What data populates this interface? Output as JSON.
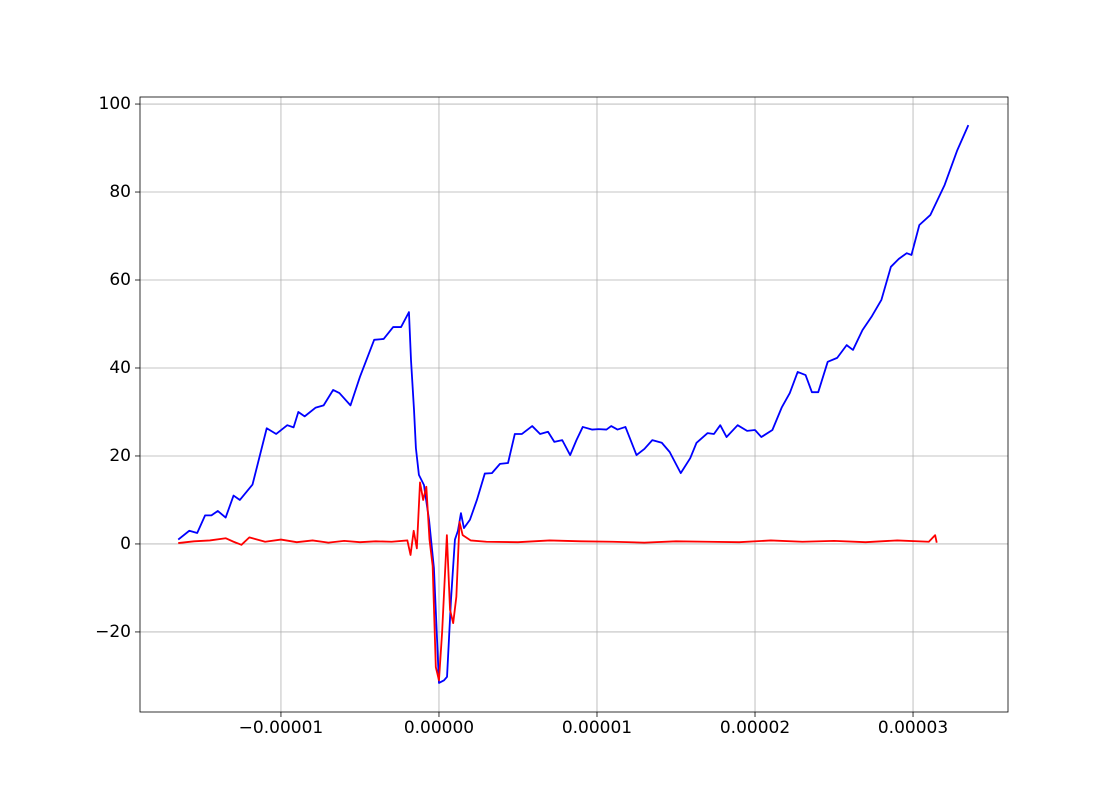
{
  "chart_data": {
    "type": "line",
    "grid": true,
    "xlim": [
      -1.892e-05,
      3.601e-05
    ],
    "ylim": [
      -38.2,
      101.6
    ],
    "xticks": [
      {
        "value": -1e-05,
        "label": "−0.00001"
      },
      {
        "value": 0,
        "label": "0.00000"
      },
      {
        "value": 1e-05,
        "label": "0.00001"
      },
      {
        "value": 2e-05,
        "label": "0.00002"
      },
      {
        "value": 3e-05,
        "label": "0.00003"
      }
    ],
    "yticks": [
      {
        "value": -20,
        "label": "−20"
      },
      0,
      20,
      40,
      60,
      80,
      100
    ],
    "series": [
      {
        "color": "#0000ff",
        "x": [
          -1.65e-05,
          -1.58e-05,
          -1.53e-05,
          -1.48e-05,
          -1.44e-05,
          -1.4e-05,
          -1.35e-05,
          -1.3e-05,
          -1.26e-05,
          -1.18e-05,
          -1.09e-05,
          -1.03e-05,
          -9.6e-06,
          -9.2e-06,
          -8.9e-06,
          -8.5e-06,
          -7.8e-06,
          -7.3e-06,
          -6.7e-06,
          -6.3e-06,
          -5.6e-06,
          -5e-06,
          -4.1e-06,
          -3.5e-06,
          -2.9e-06,
          -2.4e-06,
          -1.9e-06,
          -1.77e-06,
          -1.58e-06,
          -1.46e-06,
          -1.27e-06,
          -9.5e-07,
          -6.3e-07,
          -3.2e-07,
          0,
          3.2e-07,
          5.1e-07,
          7.6e-07,
          1.01e-06,
          1.2e-06,
          1.39e-06,
          1.58e-06,
          1.96e-06,
          2.4e-06,
          2.9e-06,
          3.35e-06,
          3.86e-06,
          4.37e-06,
          4.8e-06,
          5.25e-06,
          5.9e-06,
          6.4e-06,
          6.9e-06,
          7.3e-06,
          7.8e-06,
          8.3e-06,
          8.7e-06,
          9.1e-06,
          9.7e-06,
          1.01e-05,
          1.06e-05,
          1.09e-05,
          1.13e-05,
          1.18e-05,
          1.25e-05,
          1.3e-05,
          1.35e-05,
          1.41e-05,
          1.46e-05,
          1.53e-05,
          1.59e-05,
          1.63e-05,
          1.7e-05,
          1.74e-05,
          1.78e-05,
          1.82e-05,
          1.89e-05,
          1.95e-05,
          2e-05,
          2.04e-05,
          2.11e-05,
          2.17e-05,
          2.22e-05,
          2.27e-05,
          2.32e-05,
          2.36e-05,
          2.4e-05,
          2.46e-05,
          2.52e-05,
          2.58e-05,
          2.62e-05,
          2.68e-05,
          2.74e-05,
          2.8e-05,
          2.86e-05,
          2.91e-05,
          2.96e-05,
          2.99e-05,
          3.04e-05,
          3.11e-05,
          3.2e-05,
          3.28e-05,
          3.35e-05
        ],
        "values": [
          1,
          3,
          2.5,
          6.5,
          6.5,
          7.5,
          6,
          11,
          10,
          13.5,
          26.3,
          25,
          27,
          26.5,
          30,
          29,
          31,
          31.5,
          35,
          34.3,
          31.5,
          38,
          46.4,
          46.6,
          49.3,
          49.3,
          52.7,
          41.8,
          30.5,
          21.8,
          15.7,
          13.4,
          5.5,
          -5.5,
          -31.6,
          -31,
          -30.2,
          -12.7,
          1,
          3,
          7,
          3.6,
          5.5,
          10,
          16,
          16.1,
          18.2,
          18.4,
          25,
          25,
          26.8,
          25,
          25.5,
          23.2,
          23.6,
          20.2,
          23.6,
          26.6,
          26,
          26.1,
          26,
          26.8,
          26,
          26.6,
          20.2,
          21.6,
          23.6,
          23,
          20.9,
          16.1,
          19.5,
          23,
          25.2,
          25,
          27,
          24.3,
          27,
          25.7,
          25.9,
          24.3,
          25.9,
          31.1,
          34.3,
          39.1,
          38.4,
          34.5,
          34.5,
          41.4,
          42.3,
          45.2,
          44.1,
          48.6,
          51.8,
          55.5,
          63,
          64.8,
          66.1,
          65.7,
          72.5,
          74.8,
          81.6,
          89.5,
          95.2
        ]
      },
      {
        "color": "#ff0000",
        "x": [
          -1.65e-05,
          -1.55e-05,
          -1.45e-05,
          -1.35e-05,
          -1.3e-05,
          -1.25e-05,
          -1.2e-05,
          -1.1e-05,
          -1e-05,
          -9e-06,
          -8e-06,
          -7e-06,
          -6e-06,
          -5e-06,
          -4e-06,
          -3e-06,
          -2e-06,
          -1.8e-06,
          -1.6e-06,
          -1.4e-06,
          -1.2e-06,
          -1e-06,
          -8e-07,
          -6e-07,
          -4e-07,
          -2e-07,
          0,
          2e-07,
          5e-07,
          7e-07,
          9e-07,
          1.1e-06,
          1.3e-06,
          1.5e-06,
          2e-06,
          3e-06,
          5e-06,
          7e-06,
          9e-06,
          1.1e-05,
          1.3e-05,
          1.5e-05,
          1.7e-05,
          1.9e-05,
          2.1e-05,
          2.3e-05,
          2.5e-05,
          2.7e-05,
          2.9e-05,
          3.1e-05,
          3.14e-05,
          3.15e-05
        ],
        "values": [
          0.2,
          0.6,
          0.8,
          1.3,
          0.5,
          -0.2,
          1.5,
          0.5,
          1.0,
          0.4,
          0.8,
          0.3,
          0.7,
          0.4,
          0.6,
          0.5,
          0.8,
          -2.5,
          3,
          -1,
          14,
          10,
          13,
          1,
          -5,
          -28,
          -31,
          -20,
          2,
          -15,
          -18,
          -12,
          5,
          2,
          0.8,
          0.5,
          0.4,
          0.8,
          0.6,
          0.5,
          0.3,
          0.6,
          0.5,
          0.4,
          0.8,
          0.5,
          0.7,
          0.4,
          0.8,
          0.5,
          2,
          0.3
        ]
      }
    ]
  }
}
